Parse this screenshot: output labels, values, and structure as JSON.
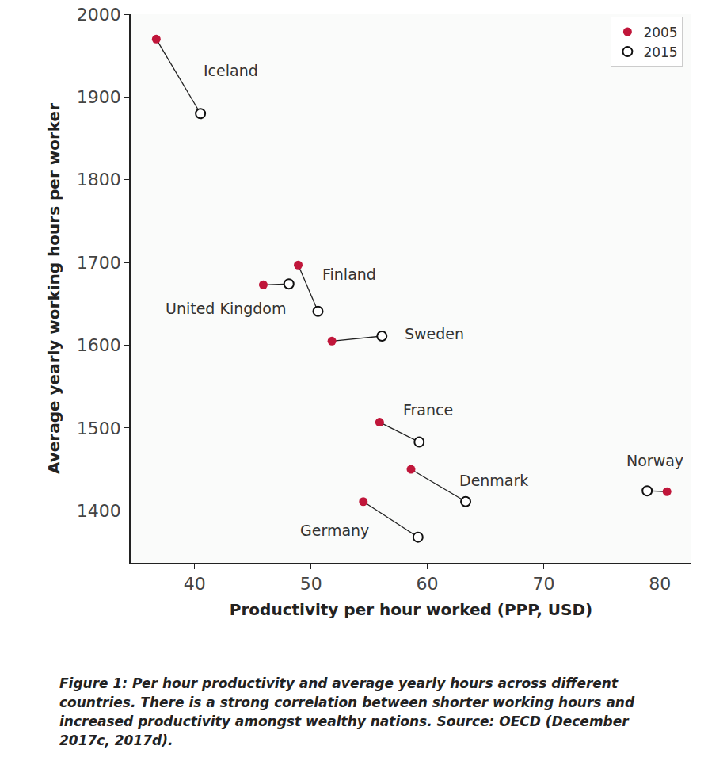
{
  "chart_data": {
    "type": "dumbbell",
    "x_label": "Productivity per hour worked (PPP, USD)",
    "y_label": "Average yearly working hours per worker",
    "caption": "Figure 1: Per hour productivity and average yearly hours across different countries. There is a strong correlation between shorter working hours and increased productivity amongst wealthy nations. Source: OECD (December 2017c, 2017d).",
    "countries": [
      "Iceland",
      "Finland",
      "United Kingdom",
      "Sweden",
      "France",
      "Denmark",
      "Norway",
      "Germany"
    ],
    "series": [
      {
        "name": "2005",
        "color": "#c0163a",
        "marker": "circle",
        "x": [
          36.7,
          48.9,
          45.9,
          51.8,
          55.9,
          58.6,
          80.6,
          54.5
        ],
        "values": [
          1970,
          1697,
          1673,
          1605,
          1507,
          1450,
          1423,
          1411
        ]
      },
      {
        "name": "2015",
        "color": "#111111",
        "marker": "circle-open",
        "x": [
          40.5,
          50.6,
          48.1,
          56.1,
          59.3,
          63.3,
          78.9,
          59.2
        ],
        "values": [
          1880,
          1641,
          1674,
          1611,
          1483,
          1411,
          1424,
          1368
        ]
      }
    ],
    "xlim": [
      34.5,
      82.7
    ],
    "xticks": [
      40,
      50,
      60,
      70,
      80
    ],
    "ylim": [
      1337,
      2000
    ],
    "yticks": [
      1400,
      1500,
      1600,
      1700,
      1800,
      1900,
      2000
    ],
    "grid": false,
    "legend": "upper right"
  }
}
